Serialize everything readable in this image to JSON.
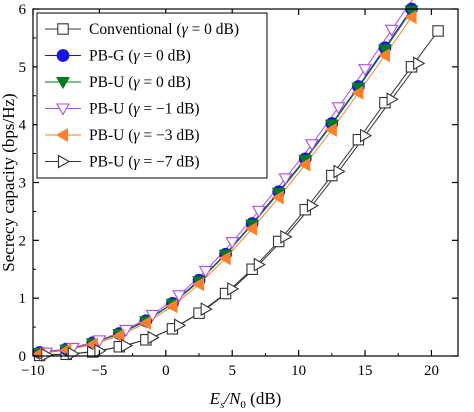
{
  "chart_data": {
    "type": "line",
    "xlabel": "E_s/N_0 (dB)",
    "xlabel_parts": {
      "main": "E",
      "sub1": "s",
      "slash": "/N",
      "sub2": "0",
      "unit": " (dB)"
    },
    "ylabel": "Secrecy capacity (bps/Hz)",
    "xlim": [
      -10,
      22
    ],
    "ylim": [
      0,
      6
    ],
    "xticks": [
      -10,
      -5,
      0,
      5,
      10,
      15,
      20
    ],
    "yticks": [
      0,
      1,
      2,
      3,
      4,
      5,
      6
    ],
    "grid": false,
    "legend_position": "top-left",
    "series": [
      {
        "name": "Conventional (γ = 0 dB)",
        "label_parts": [
          "Conventional (",
          "γ",
          " = 0 dB)"
        ],
        "color": "#333333",
        "marker": "square-open",
        "x": [
          -9.5,
          -7.5,
          -5.5,
          -3.5,
          -1.5,
          0.5,
          2.5,
          4.5,
          6.5,
          8.5,
          10.5,
          12.5,
          14.5,
          16.5,
          18.5,
          20.5
        ],
        "y": [
          0.01,
          0.03,
          0.07,
          0.16,
          0.28,
          0.47,
          0.74,
          1.08,
          1.5,
          1.98,
          2.53,
          3.12,
          3.74,
          4.38,
          5.0,
          5.62
        ]
      },
      {
        "name": "PB-G (γ = 0 dB)",
        "label_parts": [
          "PB-G (",
          "γ",
          " = 0 dB)"
        ],
        "color": "#1515ee",
        "marker": "circle-filled",
        "x": [
          -9.5,
          -7.5,
          -5.5,
          -3.5,
          -1.5,
          0.5,
          2.5,
          4.5,
          6.5,
          8.5,
          10.5,
          12.5,
          14.5,
          16.5,
          18.5
        ],
        "y": [
          0.06,
          0.12,
          0.23,
          0.39,
          0.61,
          0.91,
          1.31,
          1.76,
          2.29,
          2.84,
          3.41,
          4.02,
          4.66,
          5.33,
          6.0
        ]
      },
      {
        "name": "PB-U (γ = 0 dB)",
        "label_parts": [
          "PB-U (",
          "γ",
          " = 0 dB)"
        ],
        "color": "#007a1e",
        "marker": "triangle-down-filled",
        "x": [
          -9.5,
          -7.5,
          -5.5,
          -3.5,
          -1.5,
          0.5,
          2.5,
          4.5,
          6.5,
          8.5,
          10.5,
          12.5,
          14.5,
          16.5,
          18.5
        ],
        "y": [
          0.05,
          0.11,
          0.22,
          0.38,
          0.6,
          0.9,
          1.29,
          1.75,
          2.27,
          2.82,
          3.39,
          4.0,
          4.64,
          5.3,
          5.97
        ]
      },
      {
        "name": "PB-U (γ = −1 dB)",
        "label_parts": [
          "PB-U (",
          "γ",
          " = −1 dB)"
        ],
        "color": "#b04ce8",
        "marker": "triangle-down-open",
        "x": [
          -9,
          -7,
          -5,
          -3,
          -1,
          1,
          3,
          5,
          7,
          9,
          11,
          13,
          15,
          17,
          19
        ],
        "y": [
          0.06,
          0.14,
          0.27,
          0.45,
          0.71,
          1.05,
          1.47,
          1.97,
          2.51,
          3.07,
          3.66,
          4.3,
          4.96,
          5.64,
          6.3
        ]
      },
      {
        "name": "PB-U (γ = −3 dB)",
        "label_parts": [
          "PB-U (",
          "γ",
          " = −3 dB)"
        ],
        "color": "#ff7f27",
        "marker": "triangle-left-filled",
        "x": [
          -9.5,
          -7.5,
          -5.5,
          -3.5,
          -1.5,
          0.5,
          2.5,
          4.5,
          6.5,
          8.5,
          10.5,
          12.5,
          14.5,
          16.5,
          18.5
        ],
        "y": [
          0.04,
          0.1,
          0.2,
          0.35,
          0.57,
          0.86,
          1.24,
          1.69,
          2.2,
          2.74,
          3.31,
          3.91,
          4.55,
          5.2,
          5.86
        ]
      },
      {
        "name": "PB-U (γ = −7 dB)",
        "label_parts": [
          "PB-U (",
          "γ",
          " = −7 dB)"
        ],
        "color": "#333333",
        "marker": "triangle-right-open",
        "x": [
          -9,
          -7,
          -5,
          -3,
          -1,
          1,
          3,
          5,
          7,
          9,
          11,
          13,
          15,
          17,
          19
        ],
        "y": [
          0.02,
          0.04,
          0.09,
          0.18,
          0.32,
          0.53,
          0.81,
          1.16,
          1.58,
          2.06,
          2.6,
          3.19,
          3.81,
          4.44,
          5.06
        ]
      }
    ]
  }
}
